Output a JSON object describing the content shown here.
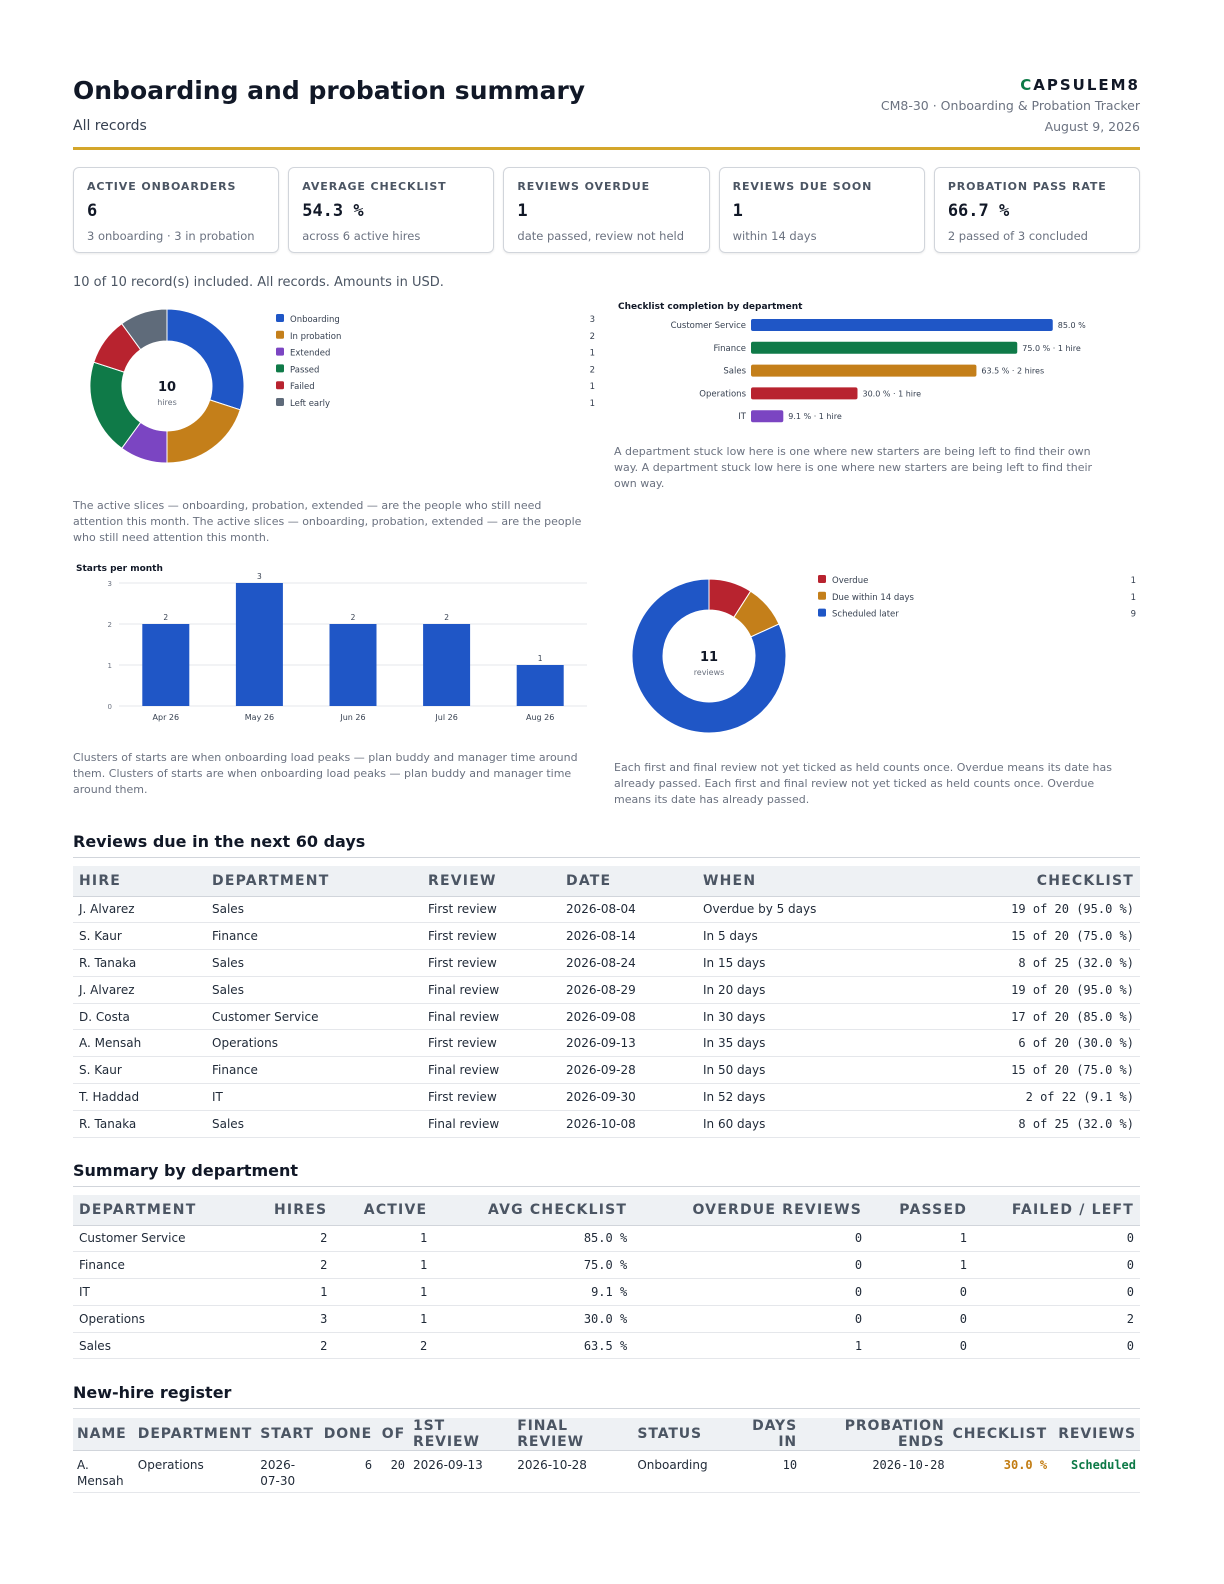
{
  "header": {
    "title": "Onboarding and probation summary",
    "subtitle": "All records",
    "brand_mark": "C",
    "brand_rest": "APSULEM8",
    "doc_ref": "CM8-30 · Onboarding & Probation Tracker",
    "date": "August 9, 2026"
  },
  "kpis": [
    {
      "label": "ACTIVE ONBOARDERS",
      "value": "6",
      "sub": "3 onboarding · 3 in probation"
    },
    {
      "label": "AVERAGE CHECKLIST",
      "value": "54.3 %",
      "sub": "across 6 active hires"
    },
    {
      "label": "REVIEWS OVERDUE",
      "value": "1",
      "sub": "date passed, review not held"
    },
    {
      "label": "REVIEWS DUE SOON",
      "value": "1",
      "sub": "within 14 days"
    },
    {
      "label": "PROBATION PASS RATE",
      "value": "66.7 %",
      "sub": "2 passed of 3 concluded"
    }
  ],
  "scope_note": "10 of 10 record(s) included. All records. Amounts in USD.",
  "status_note": "The active slices — onboarding, probation, extended — are the people who still need attention this month. The active slices — onboarding, probation, extended — are the people who still need attention this month.",
  "dept_note": "A department stuck low here is one where new starters are being left to find their own way. A department stuck low here is one where new starters are being left to find their own way.",
  "starts_note": "Clusters of starts are when onboarding load peaks — plan buddy and manager time around them. Clusters of starts are when onboarding load peaks — plan buddy and manager time around them.",
  "reviews_note": "Each first and final review not yet ticked as held counts once. Overdue means its date has already passed. Each first and final review not yet ticked as held counts once. Overdue means its date has already passed.",
  "chart_data": [
    {
      "type": "pie",
      "center_value": "10",
      "center_label": "hires",
      "categories": [
        "Onboarding",
        "In probation",
        "Extended",
        "Passed",
        "Failed",
        "Left early"
      ],
      "values": [
        3,
        2,
        1,
        2,
        1,
        1
      ],
      "colors": [
        "#1f56c6",
        "#c47f1a",
        "#7b45c2",
        "#0f7a48",
        "#b8232f",
        "#5f6b7a"
      ],
      "legend": "right"
    },
    {
      "type": "bar",
      "orientation": "horizontal",
      "title": "Checklist completion by department",
      "categories": [
        "Customer Service",
        "Finance",
        "Sales",
        "Operations",
        "IT"
      ],
      "values": [
        85.0,
        75.0,
        63.5,
        30.0,
        9.1
      ],
      "labels": [
        "85.0 %",
        "75.0 % · 1 hire",
        "63.5 % · 2 hires",
        "30.0 % · 1 hire",
        "9.1 % · 1 hire"
      ],
      "colors": [
        "#1f56c6",
        "#0f7a48",
        "#c47f1a",
        "#b8232f",
        "#7b45c2"
      ],
      "xlim": [
        0,
        100
      ]
    },
    {
      "type": "bar",
      "title": "Starts per month",
      "categories": [
        "Apr 26",
        "May 26",
        "Jun 26",
        "Jul 26",
        "Aug 26"
      ],
      "values": [
        2,
        3,
        2,
        2,
        1
      ],
      "yticks": [
        0,
        1,
        2,
        3
      ],
      "ylim": [
        0,
        3
      ],
      "grid": true,
      "color": "#1f56c6"
    },
    {
      "type": "pie",
      "center_value": "11",
      "center_label": "reviews",
      "categories": [
        "Overdue",
        "Due within 14 days",
        "Scheduled later"
      ],
      "values": [
        1,
        1,
        9
      ],
      "colors": [
        "#b8232f",
        "#c47f1a",
        "#1f56c6"
      ],
      "legend": "right"
    }
  ],
  "reviews_table": {
    "title": "Reviews due in the next 60 days",
    "headers": [
      "HIRE",
      "DEPARTMENT",
      "REVIEW",
      "DATE",
      "WHEN",
      "CHECKLIST"
    ],
    "rows": [
      [
        "J. Alvarez",
        "Sales",
        "First review",
        "2026-08-04",
        "Overdue by 5 days",
        "19 of 20 (95.0 %)"
      ],
      [
        "S. Kaur",
        "Finance",
        "First review",
        "2026-08-14",
        "In 5 days",
        "15 of 20 (75.0 %)"
      ],
      [
        "R. Tanaka",
        "Sales",
        "First review",
        "2026-08-24",
        "In 15 days",
        "8 of 25 (32.0 %)"
      ],
      [
        "J. Alvarez",
        "Sales",
        "Final review",
        "2026-08-29",
        "In 20 days",
        "19 of 20 (95.0 %)"
      ],
      [
        "D. Costa",
        "Customer Service",
        "Final review",
        "2026-09-08",
        "In 30 days",
        "17 of 20 (85.0 %)"
      ],
      [
        "A. Mensah",
        "Operations",
        "First review",
        "2026-09-13",
        "In 35 days",
        "6 of 20 (30.0 %)"
      ],
      [
        "S. Kaur",
        "Finance",
        "Final review",
        "2026-09-28",
        "In 50 days",
        "15 of 20 (75.0 %)"
      ],
      [
        "T. Haddad",
        "IT",
        "First review",
        "2026-09-30",
        "In 52 days",
        "2 of 22 (9.1 %)"
      ],
      [
        "R. Tanaka",
        "Sales",
        "Final review",
        "2026-10-08",
        "In 60 days",
        "8 of 25 (32.0 %)"
      ]
    ]
  },
  "dept_table": {
    "title": "Summary by department",
    "headers": [
      "DEPARTMENT",
      "HIRES",
      "ACTIVE",
      "AVG CHECKLIST",
      "OVERDUE REVIEWS",
      "PASSED",
      "FAILED / LEFT"
    ],
    "rows": [
      [
        "Customer Service",
        "2",
        "1",
        "85.0 %",
        "0",
        "1",
        "0"
      ],
      [
        "Finance",
        "2",
        "1",
        "75.0 %",
        "0",
        "1",
        "0"
      ],
      [
        "IT",
        "1",
        "1",
        "9.1 %",
        "0",
        "0",
        "0"
      ],
      [
        "Operations",
        "3",
        "1",
        "30.0 %",
        "0",
        "0",
        "2"
      ],
      [
        "Sales",
        "2",
        "2",
        "63.5 %",
        "1",
        "0",
        "0"
      ]
    ]
  },
  "register": {
    "title": "New-hire register",
    "headers": [
      "NAME",
      "DEPARTMENT",
      "START",
      "DONE",
      "OF",
      "1ST REVIEW",
      "FINAL REVIEW",
      "STATUS",
      "DAYS IN",
      "PROBATION ENDS",
      "CHECKLIST",
      "REVIEWS"
    ],
    "rows": [
      [
        "A. Mensah",
        "Operations",
        "2026-07-30",
        "6",
        "20",
        "2026-09-13",
        "2026-10-28",
        "Onboarding",
        "10",
        "2026-10-28",
        "30.0 %",
        "Scheduled"
      ]
    ]
  }
}
